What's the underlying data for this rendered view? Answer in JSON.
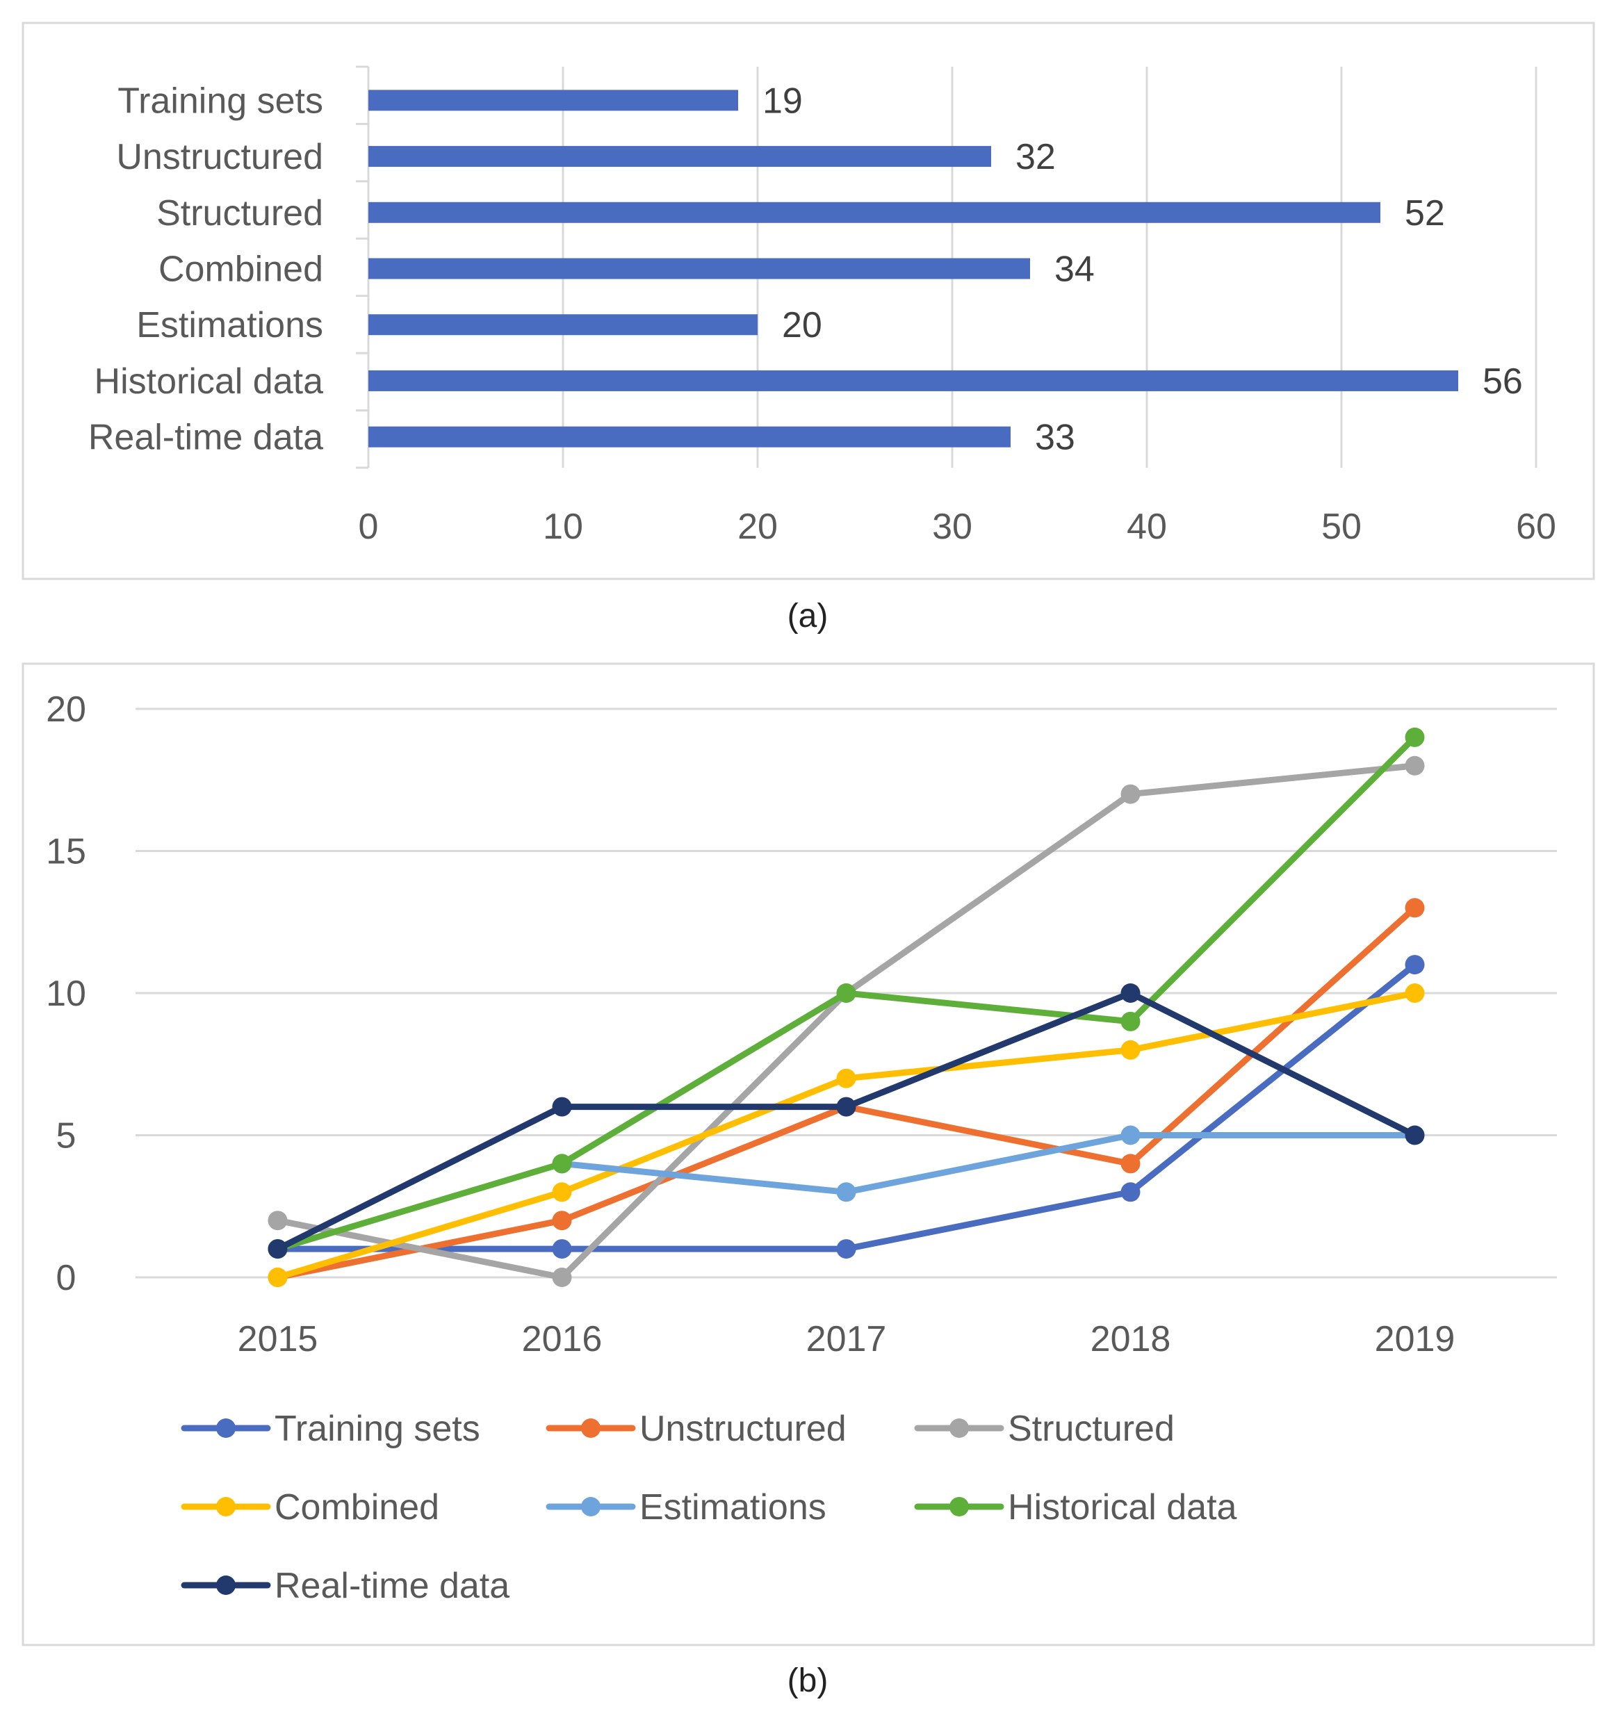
{
  "figure": {
    "caption_a": "(a)",
    "caption_b": "(b)"
  },
  "chart_data": [
    {
      "id": "a",
      "type": "bar",
      "orientation": "horizontal",
      "categories": [
        "Training sets",
        "Unstructured",
        "Structured",
        "Combined",
        "Estimations",
        "Historical data",
        "Real-time data"
      ],
      "values": [
        19,
        32,
        52,
        34,
        20,
        56,
        33
      ],
      "xlim": [
        0,
        60
      ],
      "xticks": [
        "0",
        "10",
        "20",
        "30",
        "40",
        "50",
        "60"
      ],
      "grid": true,
      "data_labels": true,
      "color": "#4a6cc0"
    },
    {
      "id": "b",
      "type": "line",
      "x": [
        "2015",
        "2016",
        "2017",
        "2018",
        "2019"
      ],
      "ylim": [
        0,
        20
      ],
      "yticks": [
        "0",
        "5",
        "10",
        "15",
        "20"
      ],
      "grid": true,
      "legend": "bottom",
      "series": [
        {
          "name": "Training sets",
          "color": "#4a6cc0",
          "values": [
            1,
            1,
            1,
            3,
            11
          ]
        },
        {
          "name": "Unstructured",
          "color": "#ee7030",
          "values": [
            0,
            2,
            6,
            4,
            13
          ]
        },
        {
          "name": "Structured",
          "color": "#a5a5a5",
          "values": [
            2,
            0,
            10,
            17,
            18
          ]
        },
        {
          "name": "Combined",
          "color": "#ffbf00",
          "values": [
            0,
            3,
            7,
            8,
            10
          ]
        },
        {
          "name": "Estimations",
          "color": "#6ea4dc",
          "values": [
            null,
            4,
            3,
            5,
            5
          ]
        },
        {
          "name": "Historical data",
          "color": "#5eae3a",
          "values": [
            1,
            4,
            10,
            9,
            19
          ]
        },
        {
          "name": "Real-time data",
          "color": "#22396e",
          "values": [
            1,
            6,
            6,
            10,
            5
          ]
        }
      ]
    }
  ]
}
